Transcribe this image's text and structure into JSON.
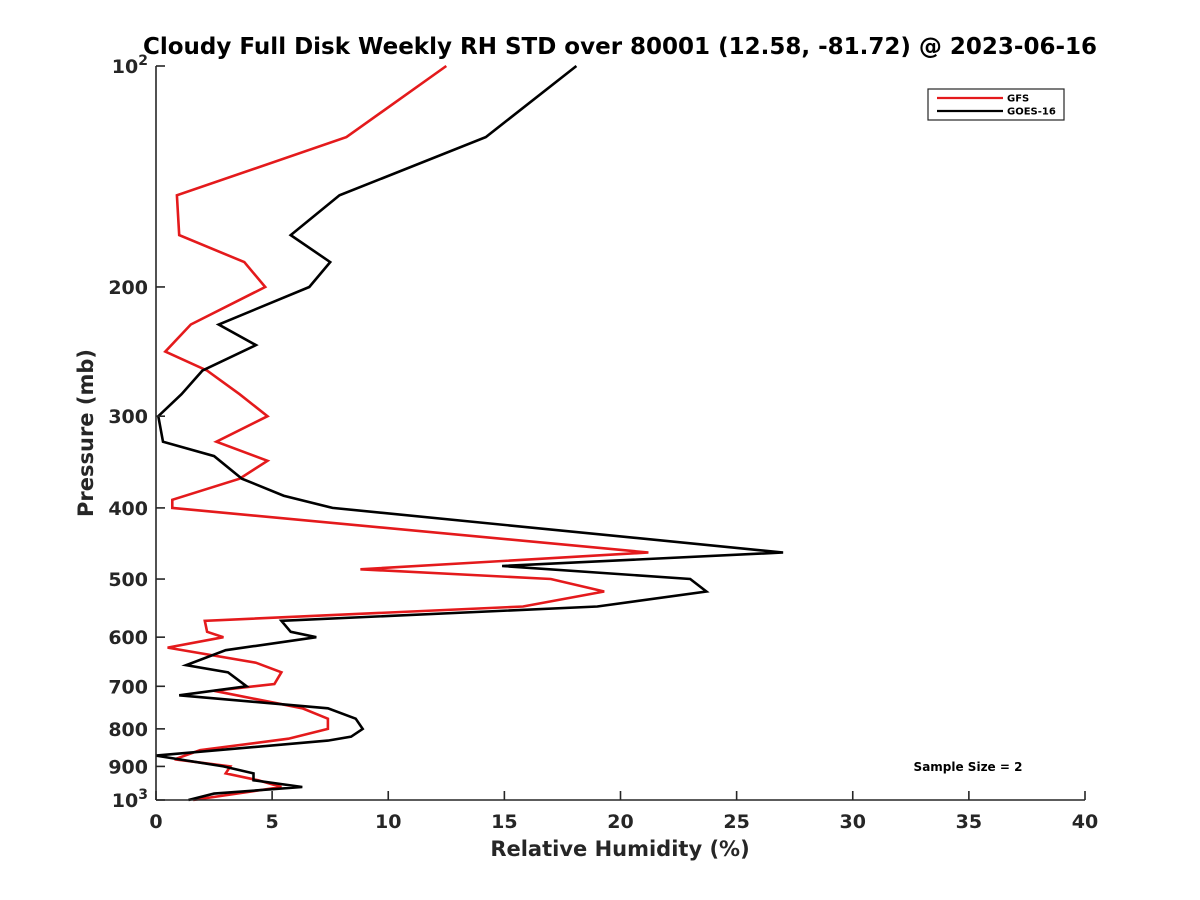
{
  "chart_data": {
    "type": "line",
    "title": "Cloudy Full Disk Weekly RH STD over 80001 (12.58, -81.72) @ 2023-06-16",
    "xlabel": "Relative Humidity (%)",
    "ylabel": "Pressure (mb)",
    "xlim": [
      0,
      40
    ],
    "ylim": [
      1000,
      100
    ],
    "yscale": "log",
    "y_reversed": true,
    "grid": false,
    "legend_position": "top-right",
    "x_ticks": [
      0,
      5,
      10,
      15,
      20,
      25,
      30,
      35,
      40
    ],
    "x_tick_labels": [
      "0",
      "5",
      "10",
      "15",
      "20",
      "25",
      "30",
      "35",
      "40"
    ],
    "y_ticks": [
      100,
      200,
      300,
      400,
      500,
      600,
      700,
      800,
      900,
      1000
    ],
    "y_tick_labels": [
      {
        "base": "10",
        "exp": "2"
      },
      {
        "base": "200",
        "exp": ""
      },
      {
        "base": "300",
        "exp": ""
      },
      {
        "base": "400",
        "exp": ""
      },
      {
        "base": "500",
        "exp": ""
      },
      {
        "base": "600",
        "exp": ""
      },
      {
        "base": "700",
        "exp": ""
      },
      {
        "base": "800",
        "exp": ""
      },
      {
        "base": "900",
        "exp": ""
      },
      {
        "base": "10",
        "exp": "3"
      }
    ],
    "annotation": "Sample Size = 2",
    "series": [
      {
        "name": "GFS",
        "color": "#e41a1c",
        "points": [
          {
            "x": 12.5,
            "p": 100
          },
          {
            "x": 8.2,
            "p": 125
          },
          {
            "x": 0.9,
            "p": 150
          },
          {
            "x": 1.0,
            "p": 170
          },
          {
            "x": 3.8,
            "p": 185
          },
          {
            "x": 4.7,
            "p": 200
          },
          {
            "x": 1.5,
            "p": 225
          },
          {
            "x": 0.4,
            "p": 245
          },
          {
            "x": 2.2,
            "p": 260
          },
          {
            "x": 3.6,
            "p": 280
          },
          {
            "x": 4.8,
            "p": 300
          },
          {
            "x": 2.6,
            "p": 325
          },
          {
            "x": 4.8,
            "p": 345
          },
          {
            "x": 3.6,
            "p": 365
          },
          {
            "x": 0.7,
            "p": 390
          },
          {
            "x": 0.7,
            "p": 400
          },
          {
            "x": 21.2,
            "p": 460
          },
          {
            "x": 8.8,
            "p": 485
          },
          {
            "x": 17.0,
            "p": 500
          },
          {
            "x": 19.3,
            "p": 520
          },
          {
            "x": 15.8,
            "p": 545
          },
          {
            "x": 2.1,
            "p": 570
          },
          {
            "x": 2.2,
            "p": 590
          },
          {
            "x": 2.9,
            "p": 600
          },
          {
            "x": 0.5,
            "p": 620
          },
          {
            "x": 4.3,
            "p": 650
          },
          {
            "x": 5.4,
            "p": 670
          },
          {
            "x": 5.1,
            "p": 695
          },
          {
            "x": 2.5,
            "p": 710
          },
          {
            "x": 6.3,
            "p": 750
          },
          {
            "x": 7.4,
            "p": 775
          },
          {
            "x": 7.4,
            "p": 800
          },
          {
            "x": 5.7,
            "p": 825
          },
          {
            "x": 1.9,
            "p": 855
          },
          {
            "x": 0.8,
            "p": 880
          },
          {
            "x": 3.2,
            "p": 900
          },
          {
            "x": 3.0,
            "p": 920
          },
          {
            "x": 4.4,
            "p": 940
          },
          {
            "x": 5.4,
            "p": 960
          },
          {
            "x": 1.6,
            "p": 1000
          }
        ]
      },
      {
        "name": "GOES-16",
        "color": "#000000",
        "points": [
          {
            "x": 18.1,
            "p": 100
          },
          {
            "x": 14.2,
            "p": 125
          },
          {
            "x": 7.9,
            "p": 150
          },
          {
            "x": 5.8,
            "p": 170
          },
          {
            "x": 7.5,
            "p": 185
          },
          {
            "x": 6.6,
            "p": 200
          },
          {
            "x": 2.7,
            "p": 225
          },
          {
            "x": 4.3,
            "p": 240
          },
          {
            "x": 2.0,
            "p": 260
          },
          {
            "x": 1.1,
            "p": 280
          },
          {
            "x": 0.1,
            "p": 300
          },
          {
            "x": 0.3,
            "p": 325
          },
          {
            "x": 2.5,
            "p": 340
          },
          {
            "x": 3.7,
            "p": 365
          },
          {
            "x": 5.5,
            "p": 385
          },
          {
            "x": 7.6,
            "p": 400
          },
          {
            "x": 27.0,
            "p": 460
          },
          {
            "x": 14.9,
            "p": 480
          },
          {
            "x": 23.0,
            "p": 500
          },
          {
            "x": 23.7,
            "p": 520
          },
          {
            "x": 19.0,
            "p": 545
          },
          {
            "x": 5.4,
            "p": 570
          },
          {
            "x": 5.8,
            "p": 590
          },
          {
            "x": 6.9,
            "p": 600
          },
          {
            "x": 3.0,
            "p": 625
          },
          {
            "x": 1.3,
            "p": 655
          },
          {
            "x": 3.1,
            "p": 670
          },
          {
            "x": 3.9,
            "p": 700
          },
          {
            "x": 1.0,
            "p": 720
          },
          {
            "x": 7.4,
            "p": 750
          },
          {
            "x": 8.6,
            "p": 775
          },
          {
            "x": 8.9,
            "p": 800
          },
          {
            "x": 8.4,
            "p": 820
          },
          {
            "x": 7.4,
            "p": 830
          },
          {
            "x": 0.0,
            "p": 870
          },
          {
            "x": 2.9,
            "p": 900
          },
          {
            "x": 4.2,
            "p": 920
          },
          {
            "x": 4.2,
            "p": 940
          },
          {
            "x": 6.3,
            "p": 960
          },
          {
            "x": 2.5,
            "p": 980
          },
          {
            "x": 1.4,
            "p": 1000
          }
        ]
      }
    ]
  }
}
